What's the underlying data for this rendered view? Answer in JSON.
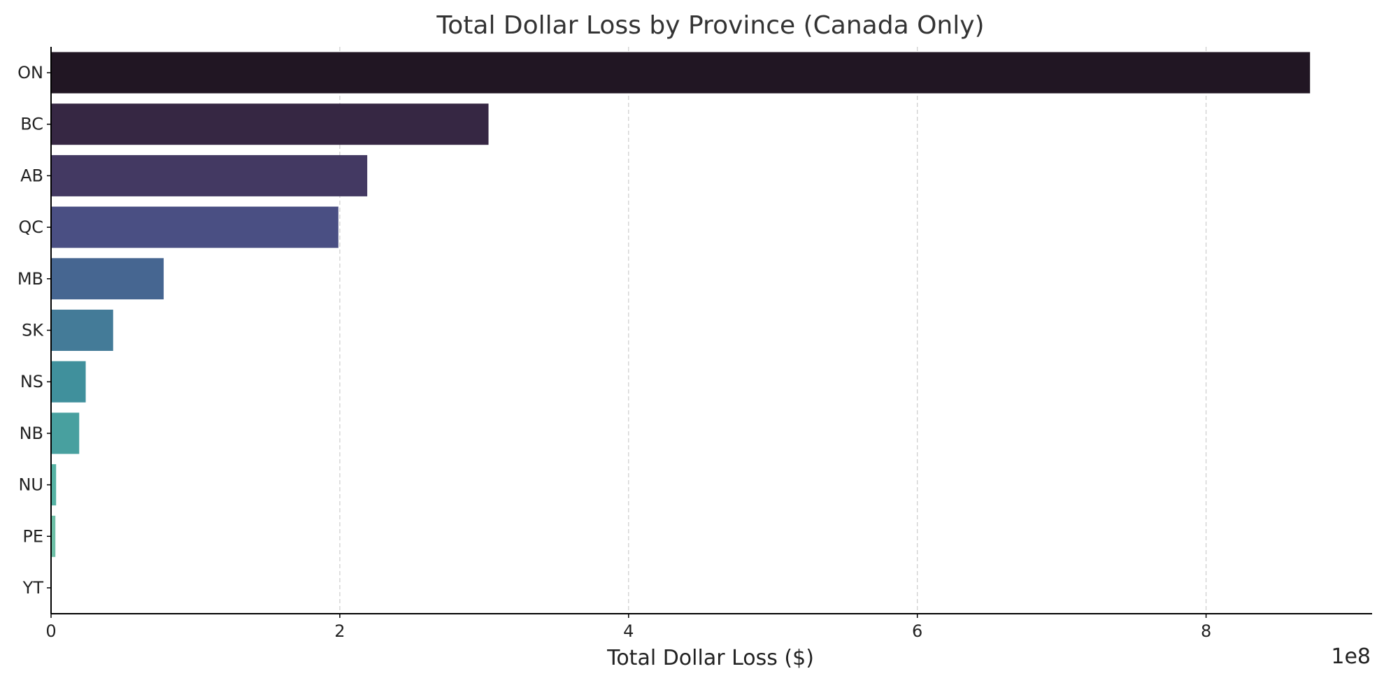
{
  "chart_data": {
    "type": "bar",
    "orientation": "horizontal",
    "title": "Total Dollar Loss by Province (Canada Only)",
    "xlabel": "Total Dollar Loss ($)",
    "ylabel": "",
    "x_offset_label": "1e8",
    "xlim": [
      0,
      915000000
    ],
    "x_ticks": [
      0,
      200000000,
      400000000,
      600000000,
      800000000
    ],
    "x_tick_labels": [
      "0",
      "2",
      "4",
      "6",
      "8"
    ],
    "grid": "x-dashed",
    "categories": [
      "ON",
      "BC",
      "AB",
      "QC",
      "MB",
      "SK",
      "NS",
      "NB",
      "NU",
      "PE",
      "YT"
    ],
    "values": [
      872000000,
      303000000,
      219000000,
      199000000,
      78000000,
      43000000,
      24000000,
      19500000,
      3500000,
      3000000,
      300000
    ],
    "colors": [
      "#211623",
      "#362743",
      "#433962",
      "#4a4f83",
      "#466691",
      "#447b98",
      "#40909c",
      "#48a09f",
      "#55b2a3",
      "#6dbfa6",
      "#8ecfae"
    ]
  }
}
